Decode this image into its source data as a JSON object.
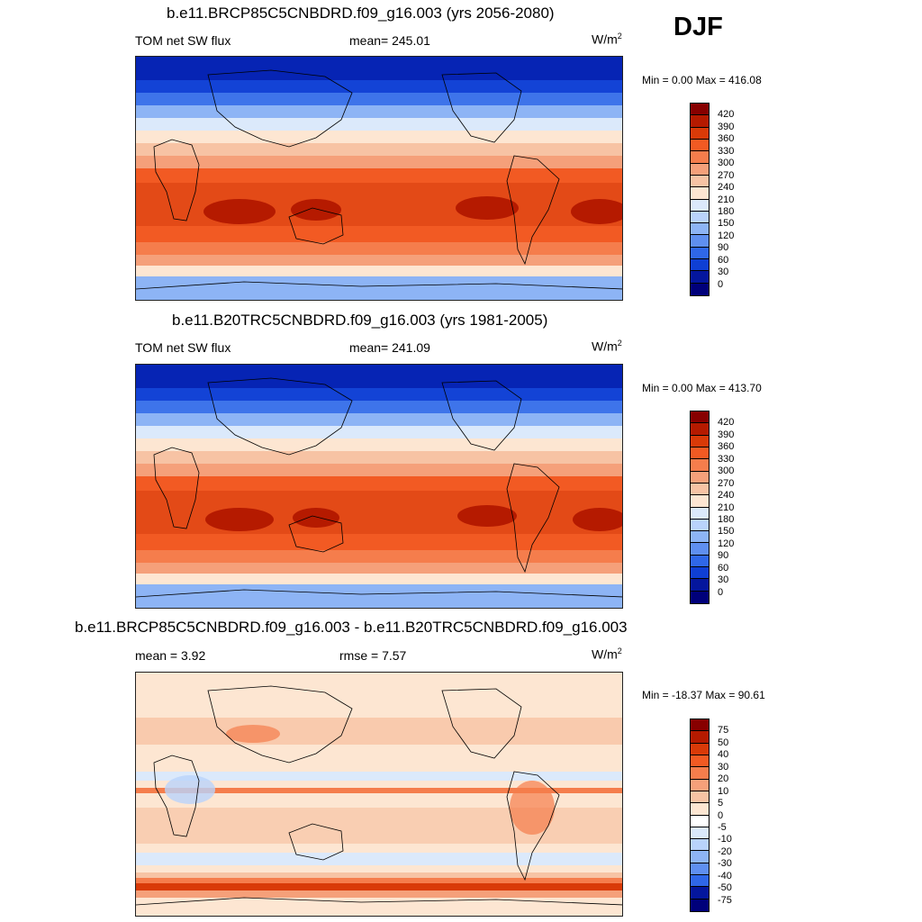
{
  "season": "DJF",
  "panels": [
    {
      "title": "b.e11.BRCP85C5CNBDRD.f09_g16.003 (yrs 2056-2080)",
      "left_label": "TOM net SW flux",
      "center_label": "mean= 245.01",
      "units_base": "W/m",
      "units_exp": "2",
      "minmax": "Min =   0.00 Max = 416.08",
      "colorbar": {
        "ticks": [
          "420",
          "390",
          "360",
          "330",
          "300",
          "270",
          "240",
          "210",
          "180",
          "150",
          "120",
          "90",
          "60",
          "30",
          "0"
        ],
        "colors": [
          "#870000",
          "#b51a00",
          "#d93a08",
          "#f25a23",
          "#f57d4c",
          "#f5a07a",
          "#f7c3a4",
          "#fde6d2",
          "#dbe9fb",
          "#b9d3fb",
          "#8db4f5",
          "#5f8ff0",
          "#2f67e8",
          "#0f3fd4",
          "#04169d",
          "#00007a"
        ]
      }
    },
    {
      "title": "b.e11.B20TRC5CNBDRD.f09_g16.003 (yrs 1981-2005)",
      "left_label": "TOM net SW flux",
      "center_label": "mean= 241.09",
      "units_base": "W/m",
      "units_exp": "2",
      "minmax": "Min =   0.00 Max = 413.70",
      "colorbar": {
        "ticks": [
          "420",
          "390",
          "360",
          "330",
          "300",
          "270",
          "240",
          "210",
          "180",
          "150",
          "120",
          "90",
          "60",
          "30",
          "0"
        ],
        "colors": [
          "#870000",
          "#b51a00",
          "#d93a08",
          "#f25a23",
          "#f57d4c",
          "#f5a07a",
          "#f7c3a4",
          "#fde6d2",
          "#dbe9fb",
          "#b9d3fb",
          "#8db4f5",
          "#5f8ff0",
          "#2f67e8",
          "#0f3fd4",
          "#04169d",
          "#00007a"
        ]
      }
    },
    {
      "title": "b.e11.BRCP85C5CNBDRD.f09_g16.003 - b.e11.B20TRC5CNBDRD.f09_g16.003",
      "left_label": "mean =   3.92",
      "center_label": "rmse =   7.57",
      "units_base": "W/m",
      "units_exp": "2",
      "minmax": "Min = -18.37 Max =  90.61",
      "colorbar": {
        "ticks": [
          "75",
          "50",
          "40",
          "30",
          "20",
          "10",
          "5",
          "0",
          "-5",
          "-10",
          "-20",
          "-30",
          "-40",
          "-50",
          "-75"
        ],
        "colors": [
          "#870000",
          "#b51a00",
          "#d93a08",
          "#f25a23",
          "#f57d4c",
          "#f5a07a",
          "#f7c3a4",
          "#fde6d2",
          "#ffffff",
          "#dbe9fb",
          "#b9d3fb",
          "#8db4f5",
          "#5f8ff0",
          "#2f67e8",
          "#04169d",
          "#00007a"
        ]
      }
    }
  ]
}
